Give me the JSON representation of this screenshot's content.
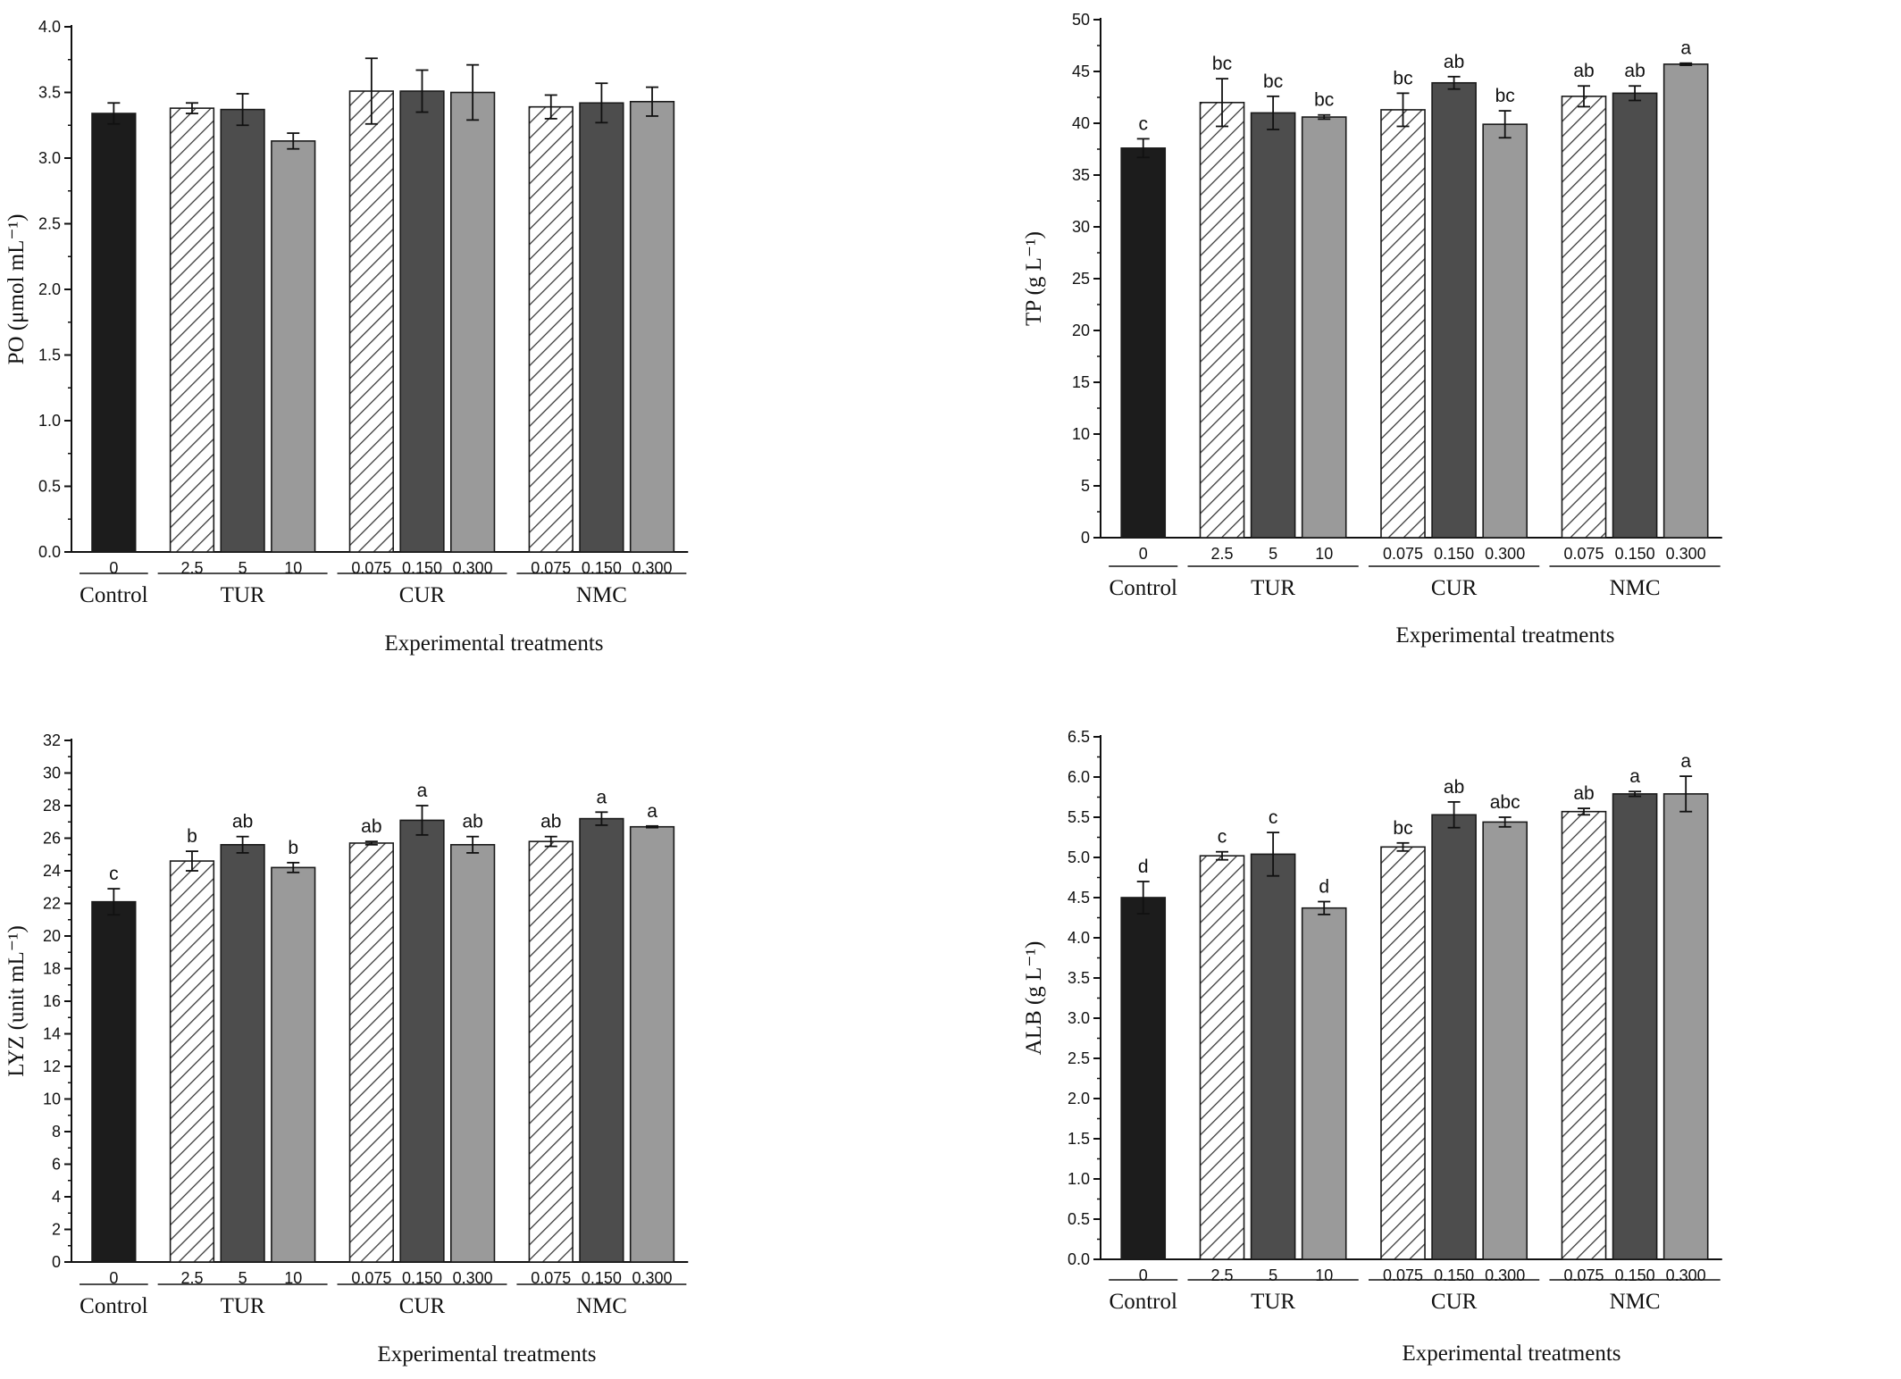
{
  "colors": {
    "control": "#1c1c1c",
    "hatch_stroke": "#3a3a3a",
    "dark": "#4d4d4d",
    "light": "#9a9a9a",
    "axis": "#111111"
  },
  "chart_data": [
    {
      "type": "bar",
      "title": "",
      "xlabel": "Experimental treatments",
      "ylabel": "PO (μmol mL⁻¹)",
      "ylim": [
        0,
        4.0
      ],
      "yticks": [
        "0.0",
        "0.5",
        "1.0",
        "1.5",
        "2.0",
        "2.5",
        "3.0",
        "3.5",
        "4.0"
      ],
      "categories": [
        "0",
        "2.5",
        "5",
        "10",
        "0.075",
        "0.150",
        "0.300",
        "0.075",
        "0.150",
        "0.300"
      ],
      "groups": [
        "Control",
        "TUR",
        "CUR",
        "NMC"
      ],
      "fills": [
        "control",
        "hatch",
        "dark",
        "light",
        "hatch",
        "dark",
        "light",
        "hatch",
        "dark",
        "light"
      ],
      "values": [
        3.34,
        3.38,
        3.37,
        3.13,
        3.51,
        3.51,
        3.5,
        3.39,
        3.42,
        3.43
      ],
      "errors": [
        0.08,
        0.04,
        0.12,
        0.06,
        0.25,
        0.16,
        0.21,
        0.09,
        0.15,
        0.11
      ],
      "letters": [
        "",
        "",
        "",
        "",
        "",
        "",
        "",
        "",
        "",
        ""
      ]
    },
    {
      "type": "bar",
      "title": "",
      "xlabel": "Experimental treatments",
      "ylabel": "TP (g L⁻¹)",
      "ylim": [
        0,
        50
      ],
      "yticks": [
        "0",
        "5",
        "10",
        "15",
        "20",
        "25",
        "30",
        "35",
        "40",
        "45",
        "50"
      ],
      "categories": [
        "0",
        "2.5",
        "5",
        "10",
        "0.075",
        "0.150",
        "0.300",
        "0.075",
        "0.150",
        "0.300"
      ],
      "groups": [
        "Control",
        "TUR",
        "CUR",
        "NMC"
      ],
      "fills": [
        "control",
        "hatch",
        "dark",
        "light",
        "hatch",
        "dark",
        "light",
        "hatch",
        "dark",
        "light"
      ],
      "values": [
        37.6,
        42.0,
        41.0,
        40.6,
        41.3,
        43.9,
        39.9,
        42.6,
        42.9,
        45.7
      ],
      "errors": [
        0.9,
        2.3,
        1.6,
        0.2,
        1.6,
        0.6,
        1.3,
        1.0,
        0.7,
        0.1
      ],
      "letters": [
        "c",
        "bc",
        "bc",
        "bc",
        "bc",
        "ab",
        "bc",
        "ab",
        "ab",
        "a"
      ]
    },
    {
      "type": "bar",
      "title": "",
      "xlabel": "Experimental treatments",
      "ylabel": "LYZ (unit mL⁻¹)",
      "ylim": [
        0,
        32
      ],
      "yticks": [
        "0",
        "2",
        "4",
        "6",
        "8",
        "10",
        "12",
        "14",
        "16",
        "18",
        "20",
        "22",
        "24",
        "26",
        "28",
        "30",
        "32"
      ],
      "categories": [
        "0",
        "2.5",
        "5",
        "10",
        "0.075",
        "0.150",
        "0.300",
        "0.075",
        "0.150",
        "0.300"
      ],
      "groups": [
        "Control",
        "TUR",
        "CUR",
        "NMC"
      ],
      "fills": [
        "control",
        "hatch",
        "dark",
        "light",
        "hatch",
        "dark",
        "light",
        "hatch",
        "dark",
        "light"
      ],
      "values": [
        22.1,
        24.6,
        25.6,
        24.2,
        25.7,
        27.1,
        25.6,
        25.8,
        27.2,
        26.7
      ],
      "errors": [
        0.8,
        0.6,
        0.5,
        0.3,
        0.1,
        0.9,
        0.5,
        0.3,
        0.4,
        0.05
      ],
      "letters": [
        "c",
        "b",
        "ab",
        "b",
        "ab",
        "a",
        "ab",
        "ab",
        "a",
        "a"
      ]
    },
    {
      "type": "bar",
      "title": "",
      "xlabel": "Experimental treatments",
      "ylabel": "ALB (g L⁻¹)",
      "ylim": [
        0,
        6.5
      ],
      "yticks": [
        "0.0",
        "0.5",
        "1.0",
        "1.5",
        "2.0",
        "2.5",
        "3.0",
        "3.5",
        "4.0",
        "4.5",
        "5.0",
        "5.5",
        "6.0",
        "6.5"
      ],
      "categories": [
        "0",
        "2.5",
        "5",
        "10",
        "0.075",
        "0.150",
        "0.300",
        "0.075",
        "0.150",
        "0.300"
      ],
      "groups": [
        "Control",
        "TUR",
        "CUR",
        "NMC"
      ],
      "fills": [
        "control",
        "hatch",
        "dark",
        "light",
        "hatch",
        "dark",
        "light",
        "hatch",
        "dark",
        "light"
      ],
      "values": [
        4.5,
        5.02,
        5.04,
        4.37,
        5.13,
        5.53,
        5.44,
        5.57,
        5.79,
        5.79
      ],
      "errors": [
        0.2,
        0.05,
        0.27,
        0.08,
        0.05,
        0.16,
        0.06,
        0.04,
        0.03,
        0.22
      ],
      "letters": [
        "d",
        "c",
        "c",
        "d",
        "bc",
        "ab",
        "abc",
        "ab",
        "a",
        "a"
      ]
    }
  ]
}
